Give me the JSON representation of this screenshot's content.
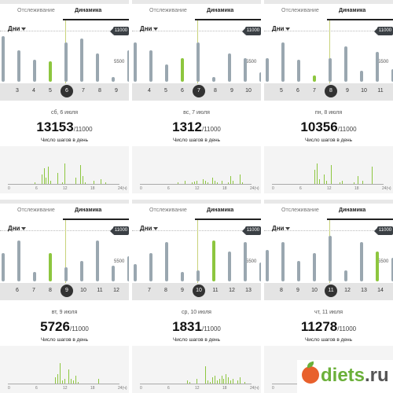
{
  "tabs": {
    "tracking": "Отслеживание",
    "dynamics": "Динамика"
  },
  "period": "Дни",
  "goal": "11000",
  "mid_value": "5500",
  "steps_caption": "Число шагов в день",
  "hour_axis": [
    "0",
    "6",
    "12",
    "18",
    "24(ч)"
  ],
  "panels": [
    {
      "days": [
        "3",
        "4",
        "5",
        "6",
        "7",
        "8",
        "9"
      ],
      "selected_day": "6",
      "date": "сб, 6 июля",
      "steps": "13153",
      "goal_suffix": "/11000"
    },
    {
      "days": [
        "4",
        "5",
        "6",
        "7",
        "8",
        "9",
        "10"
      ],
      "selected_day": "7",
      "date": "вс, 7 июля",
      "steps": "1312",
      "goal_suffix": "/11000"
    },
    {
      "days": [
        "5",
        "6",
        "7",
        "8",
        "9",
        "10",
        "11"
      ],
      "selected_day": "8",
      "date": "пн, 8 июля",
      "steps": "10356",
      "goal_suffix": "/11000"
    },
    {
      "days": [
        "6",
        "7",
        "8",
        "9",
        "10",
        "11",
        "12"
      ],
      "selected_day": "9",
      "date": "вт, 9 июля",
      "steps": "5726",
      "goal_suffix": "/11000"
    },
    {
      "days": [
        "7",
        "8",
        "9",
        "10",
        "11",
        "12",
        "13"
      ],
      "selected_day": "10",
      "date": "ср, 10 июля",
      "steps": "1831",
      "goal_suffix": "/11000"
    },
    {
      "days": [
        "8",
        "9",
        "10",
        "11",
        "12",
        "13",
        "14"
      ],
      "selected_day": "11",
      "date": "чт, 11 июля",
      "steps": "11278",
      "goal_suffix": "/11000"
    }
  ],
  "watermark": {
    "brand": "diets",
    "tld": ".ru"
  }
}
